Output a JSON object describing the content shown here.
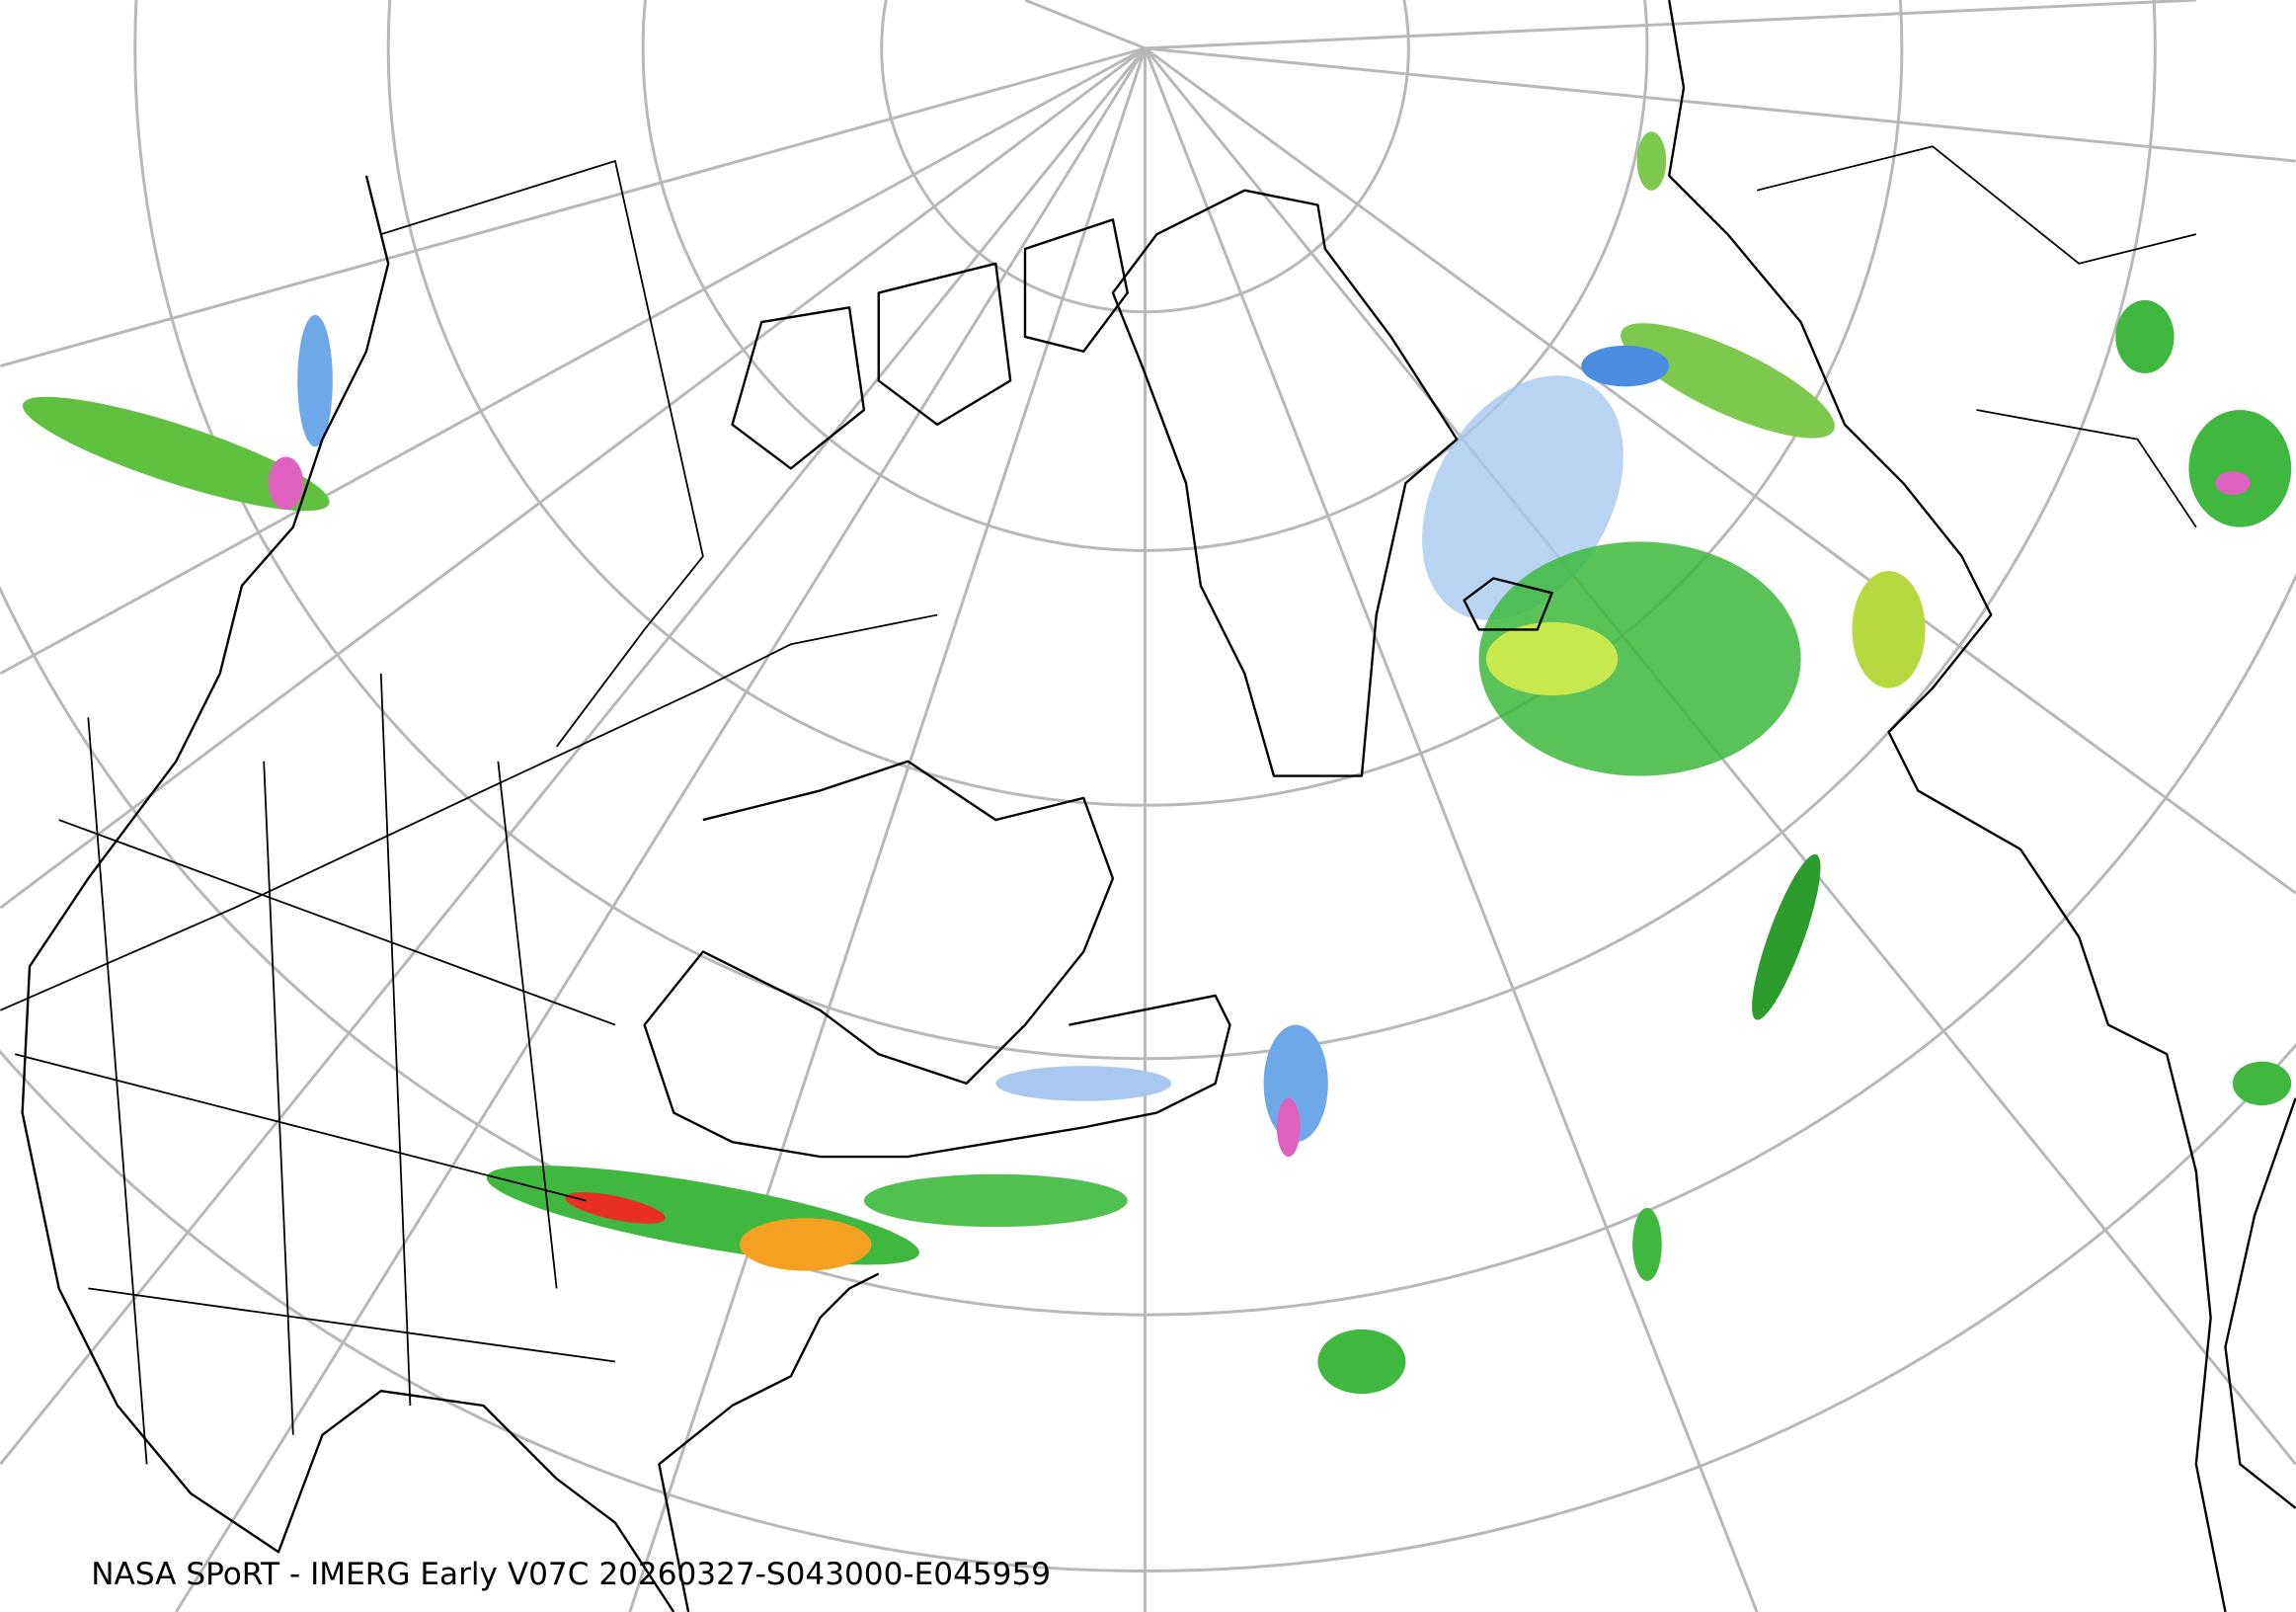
{
  "caption": "NASA SPoRT - IMERG Early V07C 20260327-S043000-E045959"
}
